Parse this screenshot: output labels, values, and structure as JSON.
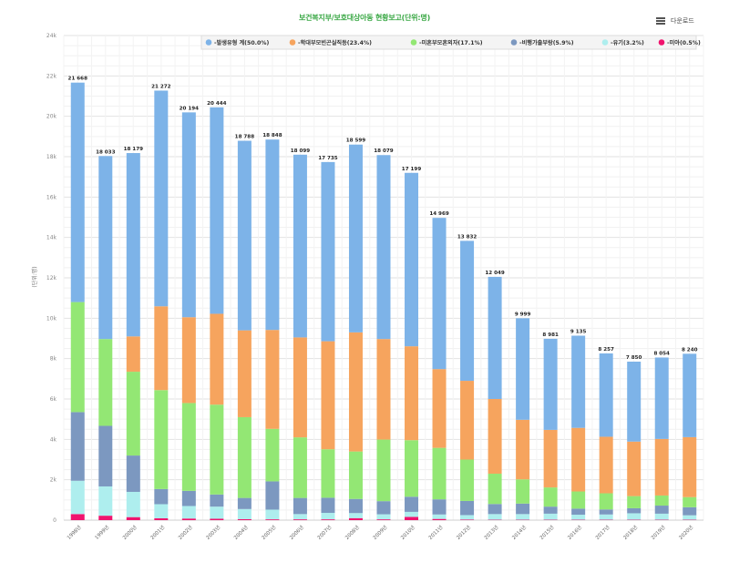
{
  "header": {
    "download_label": "다운로드",
    "menu_icon": "hamburger-menu-icon"
  },
  "chart_data": {
    "type": "bar",
    "stacked": true,
    "title": "보건복지부/보호대상아동 현황보고(단위:명)",
    "xlabel": "",
    "ylabel": "(단위:명)",
    "ylim": [
      0,
      24000
    ],
    "yticks": [
      0,
      2000,
      4000,
      6000,
      8000,
      10000,
      12000,
      14000,
      16000,
      18000,
      20000,
      22000,
      24000
    ],
    "ytick_labels": [
      "0",
      "2k",
      "4k",
      "6k",
      "8k",
      "10k",
      "12k",
      "14k",
      "16k",
      "18k",
      "20k",
      "22k",
      "24k"
    ],
    "grid": true,
    "legend_position": "top-right",
    "categories": [
      "1998년",
      "1999년",
      "2000년",
      "2001년",
      "2002년",
      "2003년",
      "2004년",
      "2005년",
      "2006년",
      "2007년",
      "2008년",
      "2009년",
      "2010년",
      "2011년",
      "2012년",
      "2013년",
      "2014년",
      "2015년",
      "2016년",
      "2017년",
      "2018년",
      "2019년",
      "2020년"
    ],
    "totals": [
      21668,
      18033,
      18179,
      21272,
      20194,
      20444,
      18788,
      18848,
      18099,
      17735,
      18599,
      18079,
      17199,
      14969,
      13832,
      12049,
      9999,
      8981,
      9135,
      8257,
      7850,
      8054,
      8240
    ],
    "total_labels": [
      "21 668",
      "18 033",
      "18 179",
      "21 272",
      "20 194",
      "20 444",
      "18 788",
      "18 848",
      "18 099",
      "17 735",
      "18 599",
      "18 079",
      "17 199",
      "14 969",
      "13 832",
      "12 049",
      "9 999",
      "8 981",
      "9 135",
      "8 257",
      "7 850",
      "8 054",
      "8 240"
    ],
    "series": [
      {
        "name": "-미아(0.5%)",
        "color": "#f0146e",
        "values": [
          300,
          220,
          150,
          90,
          80,
          70,
          50,
          40,
          40,
          40,
          100,
          40,
          160,
          60,
          30,
          20,
          20,
          20,
          20,
          20,
          20,
          20,
          20
        ]
      },
      {
        "name": "-유기(3.2%)",
        "color": "#aeeeee",
        "values": [
          1650,
          1450,
          1250,
          700,
          620,
          600,
          500,
          480,
          260,
          320,
          250,
          250,
          250,
          220,
          220,
          280,
          280,
          300,
          250,
          260,
          320,
          300,
          220
        ]
      },
      {
        "name": "-비행가출부랑(5.9%)",
        "color": "#7c98c0",
        "values": [
          3400,
          3000,
          1800,
          750,
          750,
          600,
          550,
          1400,
          800,
          750,
          700,
          650,
          750,
          750,
          700,
          500,
          520,
          350,
          300,
          250,
          250,
          400,
          400
        ]
      },
      {
        "name": "-미혼부모혼외자(17.1%)",
        "color": "#93e774",
        "values": [
          5450,
          4300,
          4150,
          4900,
          4350,
          4450,
          4000,
          2600,
          3000,
          2400,
          2350,
          3050,
          2800,
          2550,
          2050,
          1500,
          1200,
          950,
          850,
          800,
          600,
          500,
          500
        ]
      },
      {
        "name": "-학대부모빈곤실직등(23.4%)",
        "color": "#f6a45e",
        "values": [
          0,
          0,
          1750,
          4150,
          4250,
          4500,
          4300,
          4900,
          4950,
          5350,
          5900,
          4980,
          4650,
          3900,
          3900,
          3700,
          2950,
          2850,
          3150,
          2800,
          2700,
          2800,
          2970
        ]
      },
      {
        "name": "-발생유형 계(50.0%)",
        "color": "#7db3e8",
        "values": [
          10868,
          9063,
          9079,
          10682,
          10144,
          10224,
          9388,
          9428,
          9049,
          8875,
          9299,
          9109,
          8589,
          7489,
          6932,
          6049,
          5029,
          4511,
          4565,
          4127,
          3960,
          4034,
          4130
        ]
      }
    ],
    "legend_order": [
      "-발생유형 계(50.0%)",
      "-학대부모빈곤실직등(23.4%)",
      "-미혼부모혼외자(17.1%)",
      "-비행가출부랑(5.9%)",
      "-유기(3.2%)",
      "-미아(0.5%)"
    ]
  }
}
